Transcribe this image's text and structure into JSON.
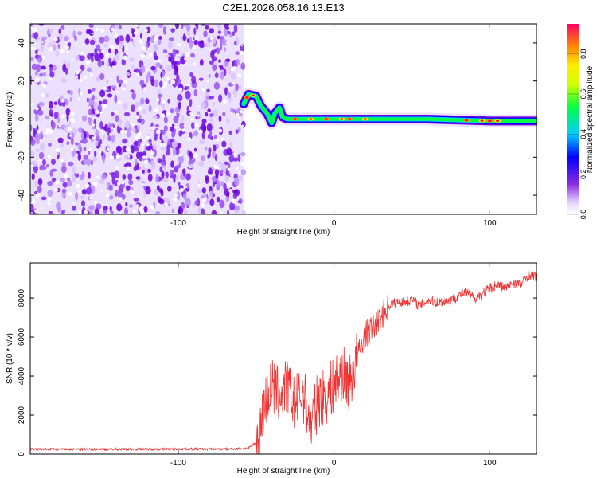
{
  "title": "C2E1.2026.058.16.13.E13",
  "chart_data": [
    {
      "type": "heatmap",
      "name": "spectrogram",
      "xlabel": "Height of straight line (km)",
      "ylabel": "Frequency (Hz)",
      "xlim": [
        -195,
        130
      ],
      "ylim": [
        -50,
        50
      ],
      "xticks": [
        -100,
        0,
        100
      ],
      "yticks": [
        -40,
        -20,
        0,
        20,
        40
      ],
      "noise_region_x": [
        -195,
        -58
      ],
      "signal_path": [
        {
          "x": -58,
          "y": 8
        },
        {
          "x": -55,
          "y": 13
        },
        {
          "x": -50,
          "y": 12
        },
        {
          "x": -47,
          "y": 7
        },
        {
          "x": -43,
          "y": 3
        },
        {
          "x": -40,
          "y": -2
        },
        {
          "x": -38,
          "y": 3
        },
        {
          "x": -35,
          "y": 6
        },
        {
          "x": -33,
          "y": 1
        },
        {
          "x": -30,
          "y": 0
        },
        {
          "x": -20,
          "y": 0
        },
        {
          "x": 0,
          "y": 0
        },
        {
          "x": 20,
          "y": 0
        },
        {
          "x": 60,
          "y": 0
        },
        {
          "x": 100,
          "y": -1
        },
        {
          "x": 130,
          "y": -1
        }
      ],
      "colorbar": {
        "label": "Normalized spectral amplitude",
        "range": [
          0,
          0.95
        ],
        "ticks": [
          0.0,
          0.2,
          0.4,
          0.6,
          0.8
        ]
      }
    },
    {
      "type": "line",
      "name": "snr",
      "xlabel": "Height of straight line (km)",
      "ylabel": "SNR (10 * v/v)",
      "xlim": [
        -195,
        130
      ],
      "ylim": [
        0,
        9800
      ],
      "xticks": [
        -100,
        0,
        100
      ],
      "yticks": [
        0,
        2000,
        4000,
        6000,
        8000
      ],
      "color": "#ee3333",
      "x": [
        -195,
        -150,
        -100,
        -70,
        -55,
        -48,
        -45,
        -40,
        -35,
        -30,
        -25,
        -20,
        -15,
        -10,
        -5,
        0,
        5,
        10,
        15,
        20,
        25,
        30,
        35,
        40,
        45,
        50,
        55,
        60,
        65,
        70,
        75,
        80,
        85,
        90,
        95,
        100,
        105,
        110,
        115,
        120,
        125,
        130
      ],
      "y": [
        250,
        250,
        260,
        260,
        300,
        700,
        2500,
        3500,
        3000,
        3500,
        2500,
        3200,
        1500,
        2800,
        3000,
        3500,
        4200,
        3600,
        5000,
        6100,
        6500,
        7000,
        7600,
        7800,
        7800,
        7900,
        7600,
        7900,
        7800,
        7800,
        7900,
        8100,
        8300,
        8000,
        8200,
        8500,
        8700,
        8500,
        8800,
        8700,
        9200,
        9100
      ]
    }
  ]
}
